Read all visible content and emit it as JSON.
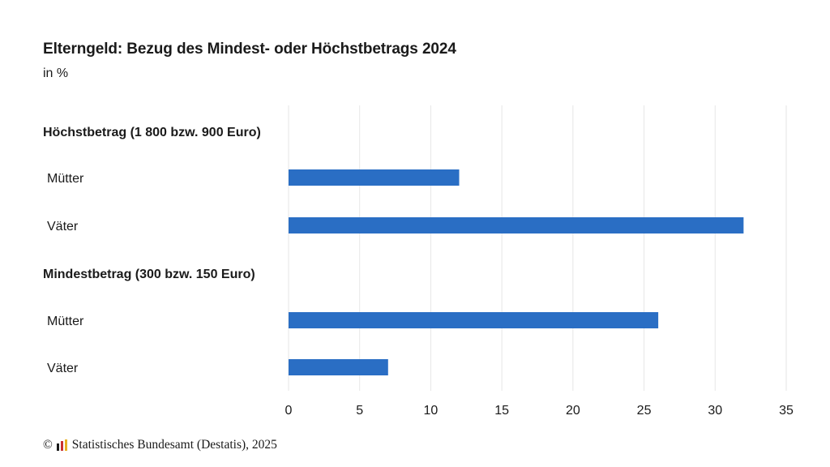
{
  "title": "Elterngeld: Bezug des Mindest- oder Höchstbetrags 2024",
  "subtitle": "in %",
  "footer": {
    "copyright": "©",
    "source": "Statistisches Bundesamt (Destatis), 2025"
  },
  "colors": {
    "bar": "#2a6ec4",
    "grid": "#e6e6e6",
    "logo": [
      "#1a1a1a",
      "#c9322f",
      "#e8b024"
    ]
  },
  "chart_data": {
    "type": "bar",
    "orientation": "horizontal",
    "groups": [
      {
        "label": "Höchstbetrag (1 800 bzw. 900 Euro)",
        "items": [
          {
            "label": "Mütter",
            "value": 12
          },
          {
            "label": "Väter",
            "value": 32
          }
        ]
      },
      {
        "label": "Mindestbetrag (300 bzw. 150 Euro)",
        "items": [
          {
            "label": "Mütter",
            "value": 26
          },
          {
            "label": "Väter",
            "value": 7
          }
        ]
      }
    ],
    "xlim": [
      0,
      35
    ],
    "xticks": [
      0,
      5,
      10,
      15,
      20,
      25,
      30,
      35
    ],
    "grid": true,
    "legend": "none"
  }
}
